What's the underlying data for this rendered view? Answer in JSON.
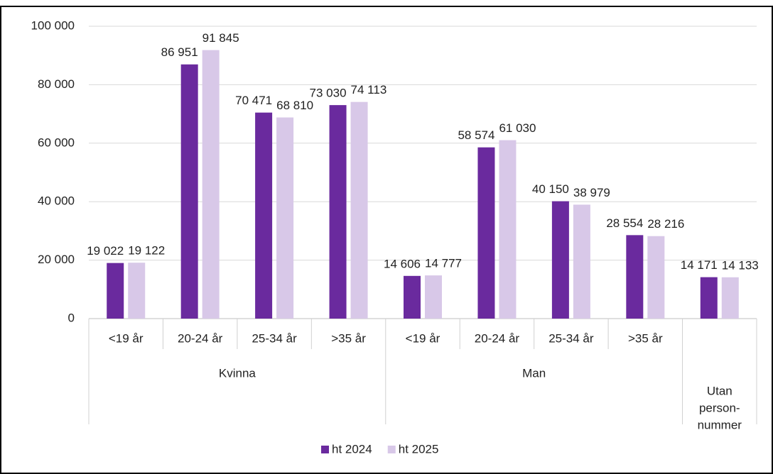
{
  "chart_data": {
    "type": "bar",
    "category_groups": [
      {
        "label": [
          "Kvinna"
        ],
        "categories": [
          "<19 år",
          "20-24 år",
          "25-34 år",
          ">35 år"
        ]
      },
      {
        "label": [
          "Man"
        ],
        "categories": [
          "<19 år",
          "20-24 år",
          "25-34 år",
          ">35 år"
        ]
      },
      {
        "label": [
          "Utan",
          "person-",
          "nummer"
        ],
        "categories": [
          null
        ]
      }
    ],
    "series": [
      {
        "name": "ht 2024",
        "color": "#6a2a9e",
        "values": [
          19022,
          86951,
          70471,
          73030,
          14606,
          58574,
          40150,
          28554,
          14171
        ],
        "value_labels": [
          "19 022",
          "86 951",
          "70 471",
          "73 030",
          "14 606",
          "58 574",
          "40 150",
          "28 554",
          "14 171"
        ]
      },
      {
        "name": "ht 2025",
        "color": "#d8c8e8",
        "values": [
          19122,
          91845,
          68810,
          74113,
          14777,
          61030,
          38979,
          28216,
          14133
        ],
        "value_labels": [
          "19 122",
          "91 845",
          "68 810",
          "74 113",
          "14 777",
          "61 030",
          "38 979",
          "28 216",
          "14 133"
        ]
      }
    ],
    "ylim": [
      0,
      100000
    ],
    "yticks": [
      0,
      {
        "value": 20000,
        "label": "20 000"
      },
      {
        "value": 40000,
        "label": "40 000"
      },
      {
        "value": 60000,
        "label": "60 000"
      },
      {
        "value": 80000,
        "label": "80 000"
      },
      {
        "value": 100000,
        "label": "100 000"
      }
    ],
    "grid": true,
    "legend": "bottom"
  }
}
